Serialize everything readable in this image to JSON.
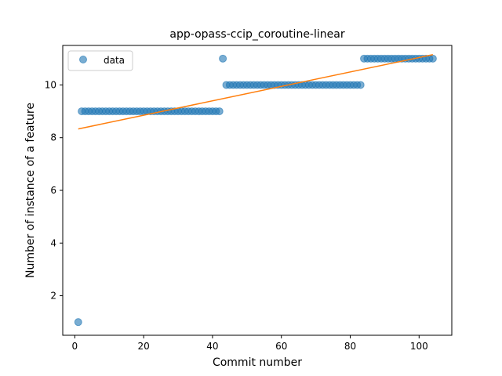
{
  "chart_data": {
    "type": "scatter",
    "title": "app-opass-ccip_coroutine-linear",
    "xlabel": "Commit number",
    "ylabel": "Number of instance of a feature",
    "xlim": [
      -3.5,
      109.5
    ],
    "ylim": [
      0.5,
      11.5
    ],
    "xticks": [
      0,
      20,
      40,
      60,
      80,
      100
    ],
    "yticks": [
      2,
      4,
      6,
      8,
      10
    ],
    "legend": {
      "position": "top-left",
      "entries": [
        "data"
      ]
    },
    "grid": false,
    "series": [
      {
        "name": "data",
        "kind": "scatter",
        "color": "#1f77b4",
        "x": [
          1,
          2,
          3,
          4,
          5,
          6,
          7,
          8,
          9,
          10,
          11,
          12,
          13,
          14,
          15,
          16,
          17,
          18,
          19,
          20,
          21,
          22,
          23,
          24,
          25,
          26,
          27,
          28,
          29,
          30,
          31,
          32,
          33,
          34,
          35,
          36,
          37,
          38,
          39,
          40,
          41,
          42,
          43,
          44,
          45,
          46,
          47,
          48,
          49,
          50,
          51,
          52,
          53,
          54,
          55,
          56,
          57,
          58,
          59,
          60,
          61,
          62,
          63,
          64,
          65,
          66,
          67,
          68,
          69,
          70,
          71,
          72,
          73,
          74,
          75,
          76,
          77,
          78,
          79,
          80,
          81,
          82,
          83,
          84,
          85,
          86,
          87,
          88,
          89,
          90,
          91,
          92,
          93,
          94,
          95,
          96,
          97,
          98,
          99,
          100,
          101,
          102,
          103,
          104
        ],
        "y": [
          1,
          9,
          9,
          9,
          9,
          9,
          9,
          9,
          9,
          9,
          9,
          9,
          9,
          9,
          9,
          9,
          9,
          9,
          9,
          9,
          9,
          9,
          9,
          9,
          9,
          9,
          9,
          9,
          9,
          9,
          9,
          9,
          9,
          9,
          9,
          9,
          9,
          9,
          9,
          9,
          9,
          9,
          11,
          10,
          10,
          10,
          10,
          10,
          10,
          10,
          10,
          10,
          10,
          10,
          10,
          10,
          10,
          10,
          10,
          10,
          10,
          10,
          10,
          10,
          10,
          10,
          10,
          10,
          10,
          10,
          10,
          10,
          10,
          10,
          10,
          10,
          10,
          10,
          10,
          10,
          10,
          10,
          10,
          11,
          11,
          11,
          11,
          11,
          11,
          11,
          11,
          11,
          11,
          11,
          11,
          11,
          11,
          11,
          11,
          11,
          11,
          11,
          11,
          11
        ]
      },
      {
        "name": "",
        "kind": "line",
        "color": "#ff7f0e",
        "x": [
          1,
          104
        ],
        "y": [
          8.33,
          11.15
        ]
      }
    ]
  }
}
